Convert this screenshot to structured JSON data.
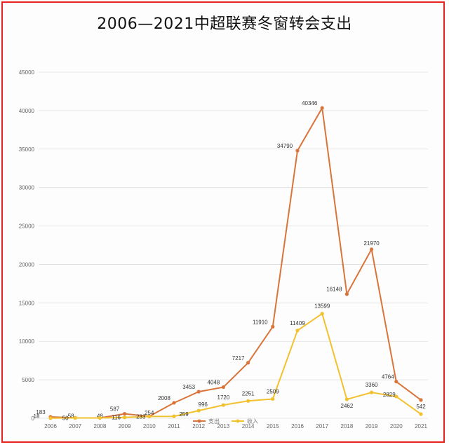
{
  "chart_data": {
    "type": "line",
    "title": "2006—2021中超联赛冬窗转会支出",
    "xlabel": "",
    "ylabel": "",
    "categories": [
      "2006",
      "2007",
      "2008",
      "2009",
      "2010",
      "2011",
      "2012",
      "2013",
      "2014",
      "2015",
      "2016",
      "2017",
      "2018",
      "2019",
      "2020",
      "2021"
    ],
    "ylim": [
      0,
      45000
    ],
    "yticks": [
      "0",
      "5000",
      "10000",
      "15000",
      "20000",
      "25000",
      "30000",
      "35000",
      "40000",
      "45000"
    ],
    "grid": true,
    "legend_position": "bottom-center",
    "series": [
      {
        "name": "支出",
        "color": "#d9743a",
        "values": [
          183,
          58,
          48,
          587,
          254,
          2008,
          3453,
          4048,
          7217,
          11910,
          34790,
          40346,
          16148,
          21970,
          4764,
          2381
        ],
        "labels": [
          "183",
          "58",
          "48",
          "587",
          "254",
          "2008",
          "3453",
          "4048",
          "7217",
          "11910",
          "34790",
          "40346",
          "16148",
          "21970",
          "4764",
          ""
        ]
      },
      {
        "name": "收入",
        "color": "#f2c12e",
        "values": [
          18,
          50,
          48,
          116,
          233,
          259,
          996,
          1720,
          2251,
          2509,
          11409,
          13599,
          2462,
          3360,
          2829,
          542
        ],
        "labels": [
          "18",
          "50",
          "",
          "116",
          "233",
          "259",
          "996",
          "1720",
          "2251",
          "2509",
          "11409",
          "13599",
          "2462",
          "3360",
          "2829",
          "542"
        ]
      }
    ]
  }
}
